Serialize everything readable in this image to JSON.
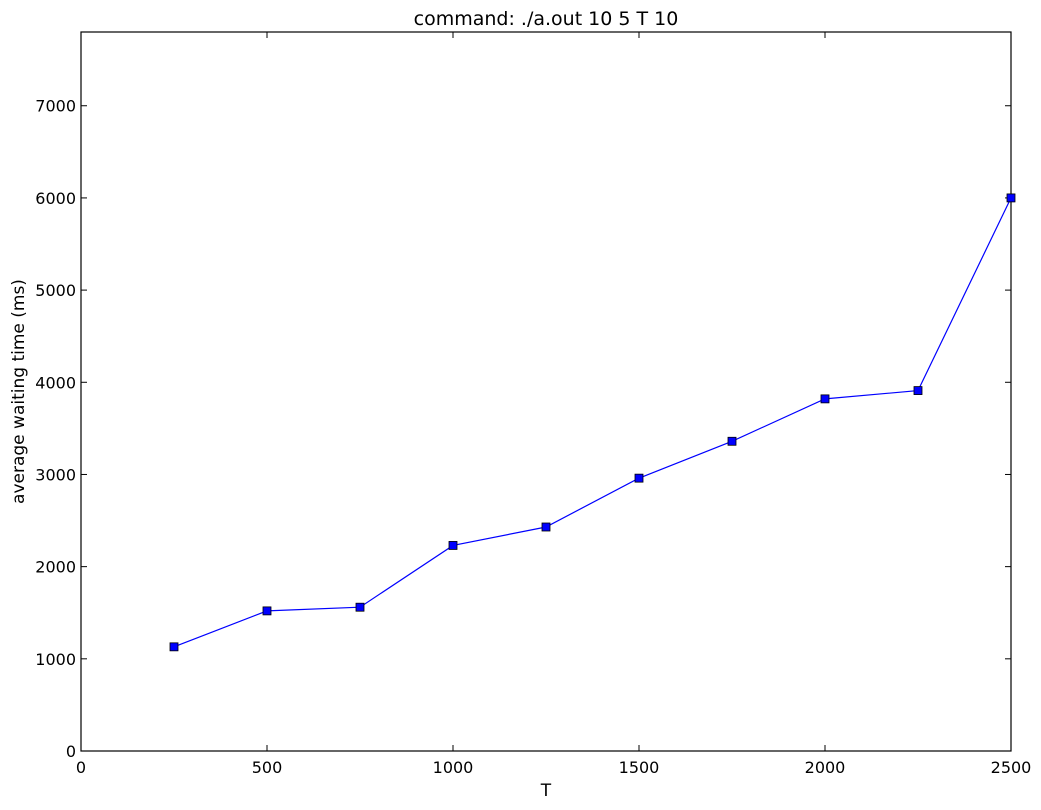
{
  "chart_data": {
    "type": "line",
    "title": "command: ./a.out 10 5 T 10",
    "xlabel": "T",
    "ylabel": "average waiting time (ms)",
    "xlim": [
      0,
      2500
    ],
    "ylim": [
      0,
      7800
    ],
    "xticks": [
      0,
      500,
      1000,
      1500,
      2000,
      2500
    ],
    "yticks": [
      0,
      1000,
      2000,
      3000,
      4000,
      5000,
      6000,
      7000
    ],
    "grid": false,
    "series": [
      {
        "color": "#0000ff",
        "marker": "square",
        "x": [
          250,
          500,
          750,
          1000,
          1250,
          1500,
          1750,
          2000,
          2250,
          2500
        ],
        "y": [
          1130,
          1520,
          1560,
          2230,
          2430,
          2960,
          3360,
          3820,
          3910,
          6000
        ]
      }
    ]
  }
}
